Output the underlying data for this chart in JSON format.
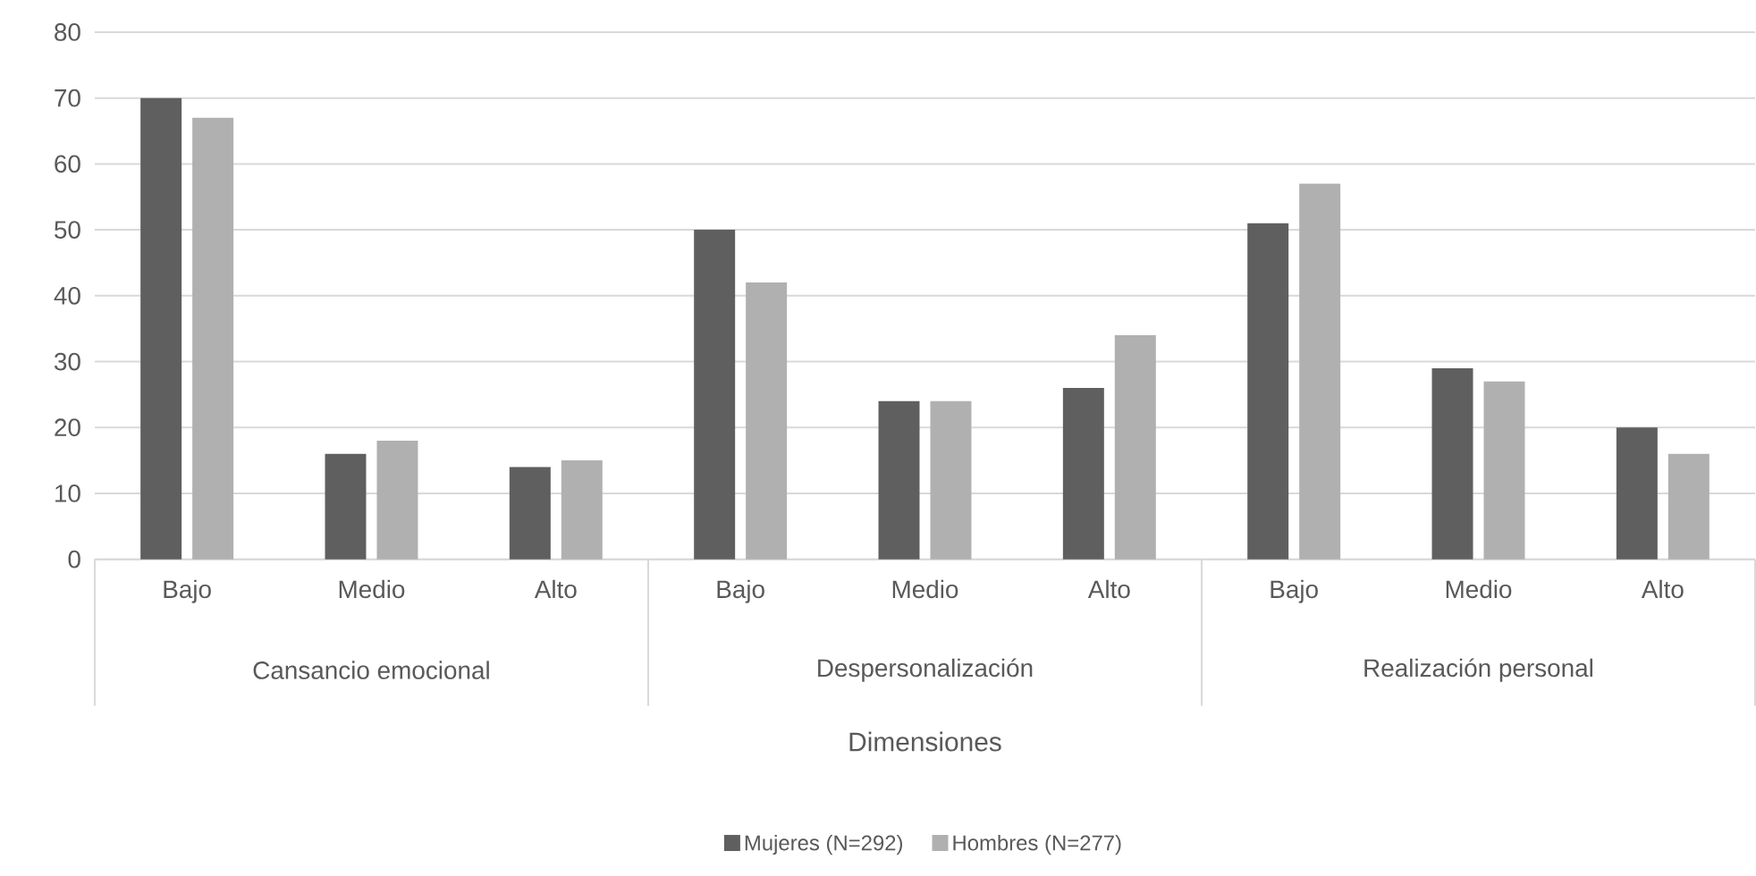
{
  "chart_data": {
    "type": "bar",
    "xlabel": "Dimensiones",
    "categories": [
      "Bajo",
      "Medio",
      "Alto",
      "Bajo",
      "Medio",
      "Alto",
      "Bajo",
      "Medio",
      "Alto"
    ],
    "annotations": [
      "Cansancio emocional",
      "Despersonalización",
      "Realización personal"
    ],
    "series": [
      {
        "name": "Mujeres (N=292)",
        "color": "#5f5f5f",
        "values": [
          70,
          16,
          14,
          50,
          24,
          26,
          51,
          29,
          20
        ]
      },
      {
        "name": "Hombres (N=277)",
        "color": "#b0b0b0",
        "values": [
          67,
          18,
          15,
          42,
          24,
          34,
          57,
          27,
          16
        ]
      }
    ],
    "ylim": [
      0,
      80
    ],
    "yticks": [
      0,
      10,
      20,
      30,
      40,
      50,
      60,
      70,
      80
    ],
    "grid": "y",
    "legend": "bottom"
  }
}
